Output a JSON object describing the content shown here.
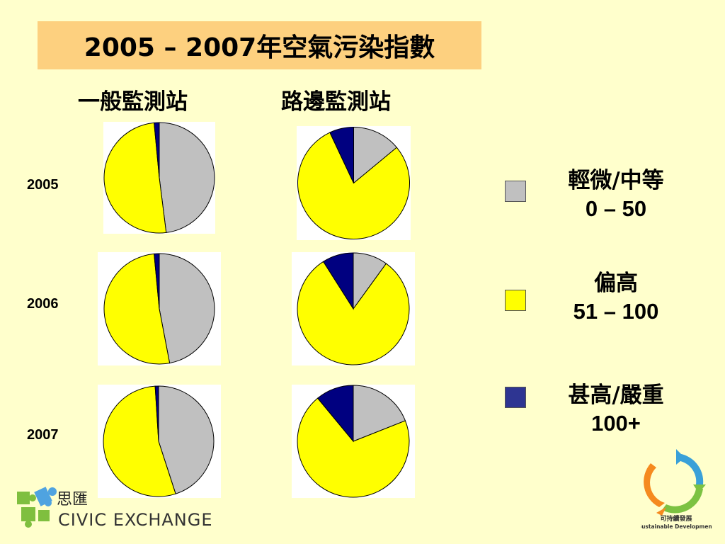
{
  "title": "2005 – 2007年空氣污染指數",
  "columns": [
    "一般監測站",
    "路邊監測站"
  ],
  "years": [
    "2005",
    "2006",
    "2007"
  ],
  "colors": {
    "gray": "#c0c0c0",
    "yellow": "#ffff00",
    "navy": "#000080"
  },
  "legend": [
    {
      "name": "輕微/中等",
      "range": "0 – 50",
      "color": "#c0c0c0"
    },
    {
      "name": "偏高",
      "range": "51 – 100",
      "color": "#ffff00"
    },
    {
      "name": "甚高/嚴重",
      "range": "100+",
      "color": "#2e3592"
    }
  ],
  "chart_data": {
    "type": "pie",
    "categories": [
      "輕微/中等 0 – 50",
      "偏高 51 – 100",
      "甚高/嚴重 100+"
    ],
    "pies": [
      {
        "station": "一般監測站",
        "year": "2005",
        "values": [
          48,
          50.5,
          1.5
        ]
      },
      {
        "station": "路邊監測站",
        "year": "2005",
        "values": [
          14,
          79,
          7
        ]
      },
      {
        "station": "一般監測站",
        "year": "2006",
        "values": [
          47,
          51.5,
          1.5
        ]
      },
      {
        "station": "路邊監測站",
        "year": "2006",
        "values": [
          10,
          81,
          9
        ]
      },
      {
        "station": "一般監測站",
        "year": "2007",
        "values": [
          45,
          54,
          1
        ]
      },
      {
        "station": "路邊監測站",
        "year": "2007",
        "values": [
          19,
          70,
          11
        ]
      }
    ]
  },
  "logos": {
    "civic_exchange": {
      "chinese": "思匯",
      "english": "CIVIC EXCHANGE"
    },
    "sustainable_development": {
      "chinese": "可持續發展",
      "english": "Sustainable Development"
    }
  }
}
